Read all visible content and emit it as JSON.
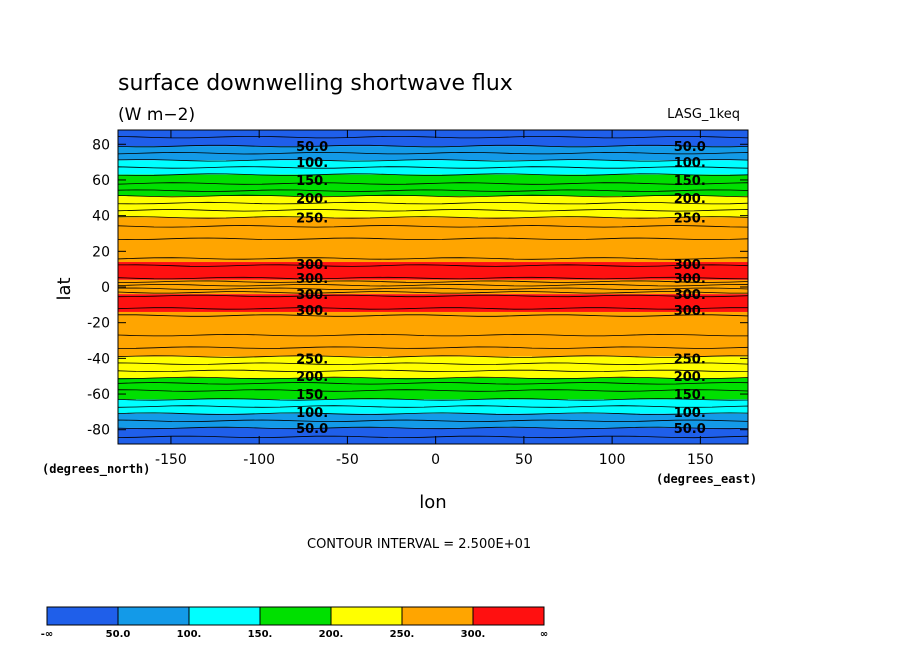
{
  "chart_data": {
    "type": "contour",
    "title": "surface downwelling shortwave flux",
    "units": "(W m−2)",
    "dataset": "LASG_1keq",
    "xlabel": "lon",
    "ylabel": "lat",
    "x_units": "(degrees_east)",
    "y_units": "(degrees_north)",
    "xlim": [
      -180,
      177
    ],
    "ylim": [
      -88,
      88
    ],
    "x_ticks": [
      "-150",
      "-100",
      "-50",
      "0",
      "50",
      "100",
      "150"
    ],
    "x_tick_values": [
      -150,
      -100,
      -50,
      0,
      50,
      100,
      150
    ],
    "y_ticks": [
      "80",
      "60",
      "40",
      "20",
      "0",
      "-20",
      "-40",
      "-60",
      "-80"
    ],
    "y_tick_values": [
      80,
      60,
      40,
      20,
      0,
      -20,
      -40,
      -60,
      -80
    ],
    "contour_interval": "CONTOUR INTERVAL = 2.500E+01",
    "levels": [
      50,
      100,
      150,
      200,
      250,
      300
    ],
    "colorbar": {
      "labels": [
        "-∞",
        "50.0",
        "100.",
        "150.",
        "200.",
        "250.",
        "300.",
        "∞"
      ],
      "colors": [
        "#1f5fea",
        "#139ae8",
        "#00ffff",
        "#00e000",
        "#ffff00",
        "#ffa500",
        "#ff1010"
      ]
    },
    "contour_lines_lat": [
      84,
      79,
      75,
      71,
      67,
      63,
      58,
      54,
      51,
      47,
      43,
      39,
      34,
      27,
      16,
      12,
      5,
      3,
      1,
      -1,
      -3,
      -5,
      -12,
      -16,
      -27,
      -34,
      -39,
      -43,
      -47,
      -51,
      -54,
      -58,
      -63,
      -67,
      -71,
      -75,
      -79,
      -84
    ],
    "bands": [
      {
        "lat_top": 88,
        "lat_bottom": 79,
        "level_index": 0
      },
      {
        "lat_top": 79,
        "lat_bottom": 71,
        "level_index": 1
      },
      {
        "lat_top": 71,
        "lat_bottom": 63,
        "level_index": 2
      },
      {
        "lat_top": 63,
        "lat_bottom": 51,
        "level_index": 3
      },
      {
        "lat_top": 51,
        "lat_bottom": 39,
        "level_index": 4
      },
      {
        "lat_top": 39,
        "lat_bottom": 14,
        "level_index": 5
      },
      {
        "lat_top": 14,
        "lat_bottom": 4,
        "level_index": 6
      },
      {
        "lat_top": 4,
        "lat_bottom": -4,
        "level_index": 5
      },
      {
        "lat_top": -4,
        "lat_bottom": -14,
        "level_index": 6
      },
      {
        "lat_top": -14,
        "lat_bottom": -39,
        "level_index": 5
      },
      {
        "lat_top": -39,
        "lat_bottom": -51,
        "level_index": 4
      },
      {
        "lat_top": -51,
        "lat_bottom": -63,
        "level_index": 3
      },
      {
        "lat_top": -63,
        "lat_bottom": -71,
        "level_index": 2
      },
      {
        "lat_top": -71,
        "lat_bottom": -79,
        "level_index": 1
      },
      {
        "lat_top": -79,
        "lat_bottom": -88,
        "level_index": 0
      }
    ],
    "contour_labels": [
      {
        "text": "50.0",
        "lon": -70,
        "lat": 79
      },
      {
        "text": "100.",
        "lon": -70,
        "lat": 70
      },
      {
        "text": "150.",
        "lon": -70,
        "lat": 60
      },
      {
        "text": "200.",
        "lon": -70,
        "lat": 50
      },
      {
        "text": "250.",
        "lon": -70,
        "lat": 39
      },
      {
        "text": "300.",
        "lon": -70,
        "lat": 13
      },
      {
        "text": "300.",
        "lon": -70,
        "lat": 5
      },
      {
        "text": "300.",
        "lon": -70,
        "lat": -4
      },
      {
        "text": "300.",
        "lon": -70,
        "lat": -13
      },
      {
        "text": "250.",
        "lon": -70,
        "lat": -40
      },
      {
        "text": "200.",
        "lon": -70,
        "lat": -50
      },
      {
        "text": "150.",
        "lon": -70,
        "lat": -60
      },
      {
        "text": "100.",
        "lon": -70,
        "lat": -70
      },
      {
        "text": "50.0",
        "lon": -70,
        "lat": -79
      },
      {
        "text": "50.0",
        "lon": 144,
        "lat": 79
      },
      {
        "text": "100.",
        "lon": 144,
        "lat": 70
      },
      {
        "text": "150.",
        "lon": 144,
        "lat": 60
      },
      {
        "text": "200.",
        "lon": 144,
        "lat": 50
      },
      {
        "text": "250.",
        "lon": 144,
        "lat": 39
      },
      {
        "text": "300.",
        "lon": 144,
        "lat": 13
      },
      {
        "text": "300.",
        "lon": 144,
        "lat": 5
      },
      {
        "text": "300.",
        "lon": 144,
        "lat": -4
      },
      {
        "text": "300.",
        "lon": 144,
        "lat": -13
      },
      {
        "text": "250.",
        "lon": 144,
        "lat": -40
      },
      {
        "text": "200.",
        "lon": 144,
        "lat": -50
      },
      {
        "text": "150.",
        "lon": 144,
        "lat": -60
      },
      {
        "text": "100.",
        "lon": 144,
        "lat": -70
      },
      {
        "text": "50.0",
        "lon": 144,
        "lat": -79
      }
    ]
  }
}
